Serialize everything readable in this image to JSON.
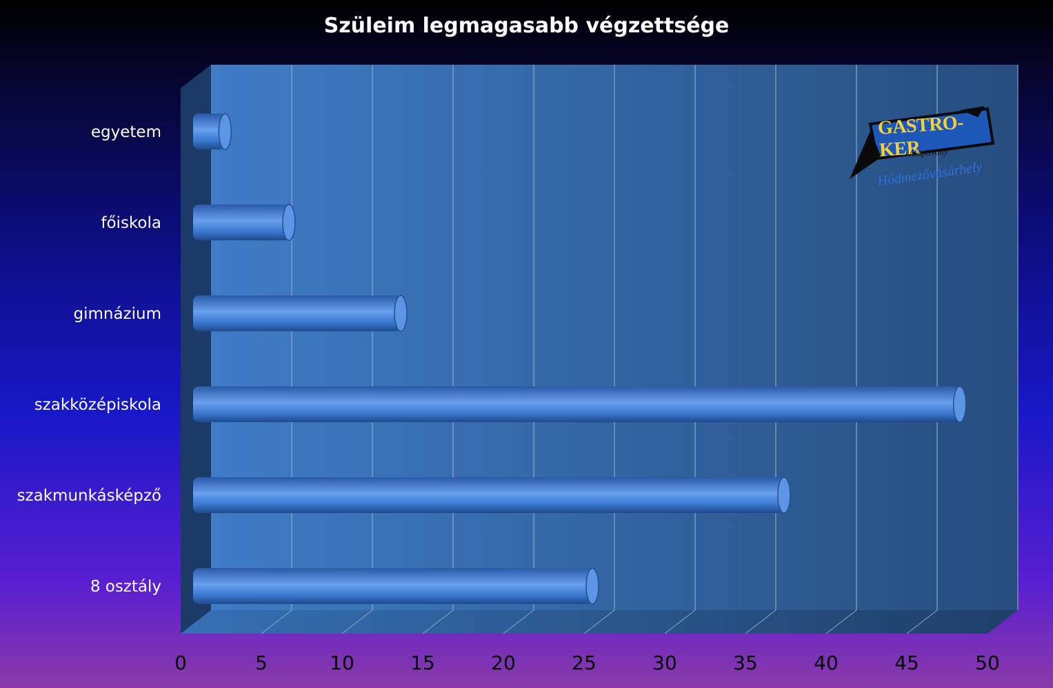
{
  "chart_data": {
    "type": "bar",
    "orientation": "horizontal",
    "title": "Szüleim legmagasabb végzettsége",
    "categories": [
      "egyetem",
      "főiskola",
      "gimnázium",
      "szakközépiskola",
      "szakmunkásképző",
      "8 osztály"
    ],
    "values": [
      2,
      6,
      13,
      48,
      37,
      25
    ],
    "xlim": [
      0,
      50
    ],
    "x_ticks": [
      "0",
      "5",
      "10",
      "15",
      "20",
      "25",
      "30",
      "35",
      "40",
      "45",
      "50"
    ],
    "grid": true,
    "legend": "none",
    "colors": {
      "bar": "#3a78d0",
      "bar_highlight": "#6aa0ee",
      "bar_dark": "#1e4a8c",
      "plot_back": "#2f66aa",
      "label": "#ffffff",
      "tick": "#000000"
    }
  },
  "logo": {
    "name": "GASTRO-KER",
    "subtitle": "Alapítvány",
    "city": "Hódmezővásárhely"
  }
}
